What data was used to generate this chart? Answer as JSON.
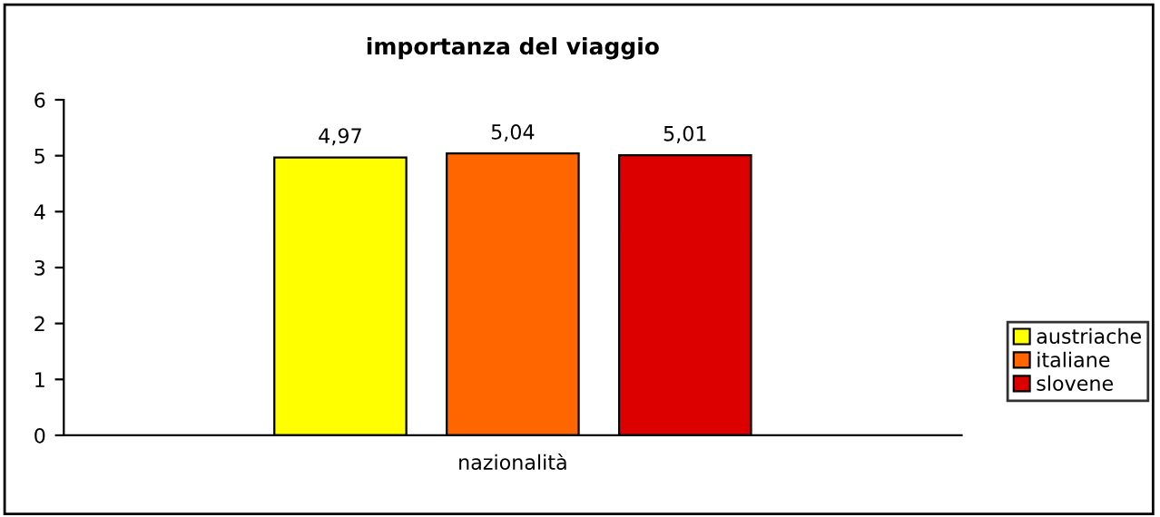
{
  "chart_data": {
    "type": "bar",
    "title": "importanza del viaggio",
    "xlabel": "nazionalità",
    "categories": [
      null
    ],
    "series": [
      {
        "name": "austriache",
        "color": "#ffff00",
        "values": [
          4.97
        ],
        "value_labels": [
          "4,97"
        ]
      },
      {
        "name": "italiane",
        "color": "#ff6600",
        "values": [
          5.04
        ],
        "value_labels": [
          "5,04"
        ]
      },
      {
        "name": "slovene",
        "color": "#dd0000",
        "values": [
          5.01
        ],
        "value_labels": [
          "5,01"
        ]
      }
    ],
    "ylim": [
      0,
      6
    ],
    "yticks": [
      0,
      1,
      2,
      3,
      4,
      5,
      6
    ],
    "grid": false,
    "legend": "right"
  }
}
